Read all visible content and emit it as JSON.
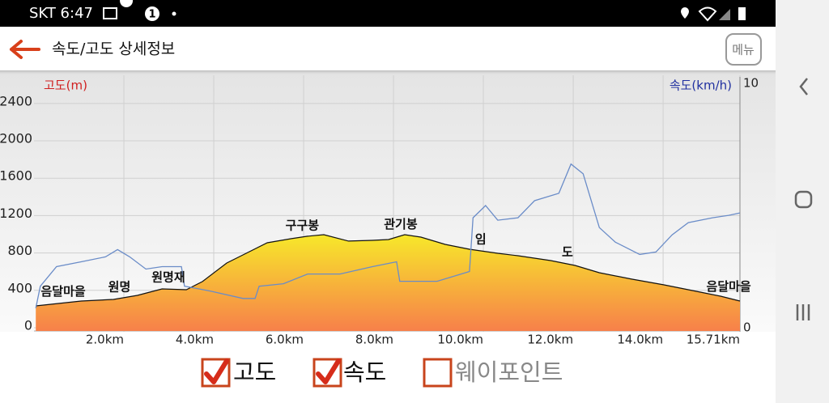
{
  "status_bar": {
    "carrier_time": "SKT 6:47",
    "badge": "1"
  },
  "header": {
    "title": "속도/고도 상세정보",
    "menu": "메뉴"
  },
  "chart_data": {
    "type": "area-line",
    "ylabel": "고도(m)",
    "y2label": "속도(km/h)",
    "xlim": [
      0,
      15.71
    ],
    "xticks": [
      {
        "value": 2,
        "label": "2.0km"
      },
      {
        "value": 4,
        "label": "4.0km"
      },
      {
        "value": 6,
        "label": "6.0km"
      },
      {
        "value": 8,
        "label": "8.0km"
      },
      {
        "value": 10,
        "label": "10.0km"
      },
      {
        "value": 12,
        "label": "12.0km"
      },
      {
        "value": 14,
        "label": "14.0km"
      },
      {
        "value": 15.71,
        "label": "15.71km"
      }
    ],
    "ylim": [
      0,
      2615
    ],
    "yticks": [
      0,
      400,
      800,
      1200,
      1600,
      2000,
      2400
    ],
    "y2lim": [
      0,
      10
    ],
    "y2ticks": [
      0,
      10
    ],
    "grid": true,
    "series": [
      {
        "axis": "y",
        "color": "#f7e82a",
        "color2": "#f7804a",
        "x": [
          0.04,
          1.05,
          1.77,
          2.3,
          2.85,
          3.39,
          3.75,
          4.29,
          4.65,
          5.19,
          5.73,
          6.09,
          6.45,
          7.0,
          7.53,
          7.89,
          8.25,
          8.61,
          9.15,
          9.69,
          10.32,
          10.77,
          11.5,
          12.04,
          12.58,
          13.3,
          14.02,
          14.74,
          15.28,
          15.71
        ],
        "values": [
          234,
          286,
          303,
          346,
          416,
          407,
          494,
          693,
          779,
          909,
          953,
          979,
          996,
          927,
          935,
          944,
          996,
          970,
          892,
          840,
          797,
          771,
          719,
          667,
          589,
          520,
          459,
          390,
          338,
          286
        ]
      },
      {
        "axis": "y2",
        "color": "#6a8cc8",
        "x": [
          0.04,
          0.14,
          0.5,
          1.05,
          1.59,
          1.86,
          2.13,
          2.49,
          2.85,
          3.28,
          3.35,
          3.93,
          4.65,
          4.92,
          5.01,
          5.55,
          6.09,
          6.81,
          7.53,
          8.07,
          8.14,
          8.97,
          9.69,
          9.77,
          10.05,
          10.32,
          10.77,
          11.14,
          11.68,
          11.95,
          12.22,
          12.58,
          12.94,
          13.48,
          13.84,
          14.2,
          14.56,
          15.1,
          15.46,
          15.71
        ],
        "values": [
          0.8,
          1.7,
          2.5,
          2.7,
          2.9,
          3.2,
          2.9,
          2.4,
          2.5,
          2.5,
          1.7,
          1.5,
          1.2,
          1.2,
          1.7,
          1.8,
          2.2,
          2.2,
          2.5,
          2.7,
          1.9,
          1.9,
          2.3,
          4.5,
          5.0,
          4.4,
          4.5,
          5.2,
          5.5,
          6.7,
          6.3,
          4.1,
          3.5,
          3.0,
          3.1,
          3.8,
          4.3,
          4.5,
          4.6,
          4.7
        ]
      }
    ],
    "annotations": [
      {
        "text": "음달마을",
        "x": 0.65
      },
      {
        "text": "원명",
        "x": 1.9
      },
      {
        "text": "원명재",
        "x": 2.99
      },
      {
        "text": "구구봉",
        "x": 5.97
      },
      {
        "text": "관기봉",
        "x": 8.16
      },
      {
        "text": "임",
        "x": 9.94
      },
      {
        "text": "도",
        "x": 11.87
      },
      {
        "text": "음달마을",
        "x": 15.46
      }
    ],
    "legend": [
      {
        "label": "고도",
        "checked": true
      },
      {
        "label": "속도",
        "checked": true
      },
      {
        "label": "웨이포인트",
        "checked": false
      }
    ]
  }
}
